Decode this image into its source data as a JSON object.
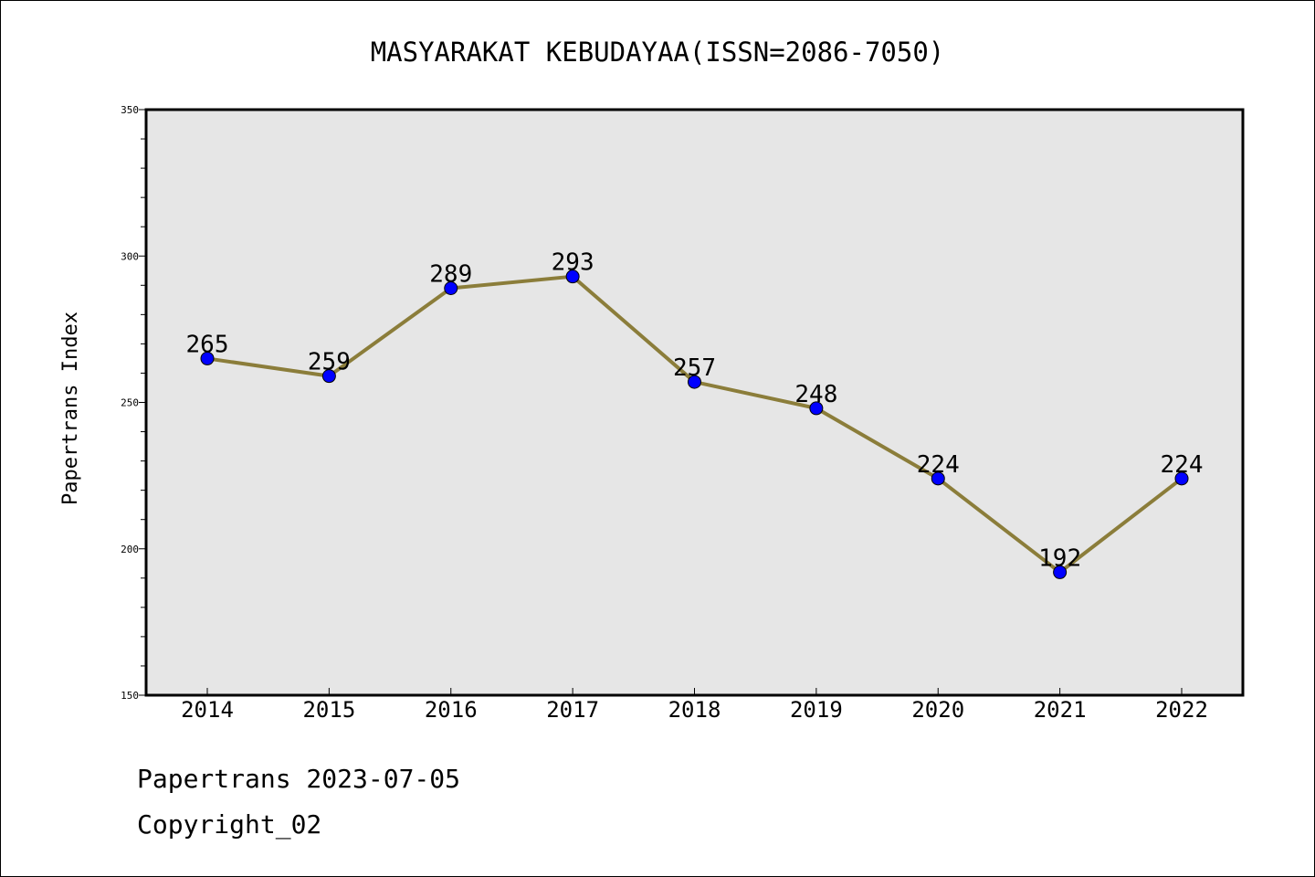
{
  "chart_data": {
    "type": "line",
    "title": "MASYARAKAT KEBUDAYAA(ISSN=2086-7050)",
    "xlabel": "",
    "ylabel": "Papertrans Index",
    "categories": [
      "2014",
      "2015",
      "2016",
      "2017",
      "2018",
      "2019",
      "2020",
      "2021",
      "2022"
    ],
    "values": [
      265,
      259,
      289,
      293,
      257,
      248,
      224,
      192,
      224
    ],
    "data_labels": [
      "265",
      "259",
      "289",
      "293",
      "257",
      "248",
      "224",
      "192",
      "224"
    ],
    "ylim": [
      150,
      350
    ],
    "y_ticks": [
      150,
      200,
      250,
      300,
      350
    ],
    "y_tick_labels": [
      "150",
      "200",
      "250",
      "300",
      "350"
    ],
    "grid": false,
    "colors": {
      "line": "#8B7D3A",
      "marker": "#0000FF",
      "plot_background": "#E6E6E6"
    }
  },
  "footer": {
    "date_text": "Papertrans 2023-07-05",
    "copyright_text": "Copyright_02"
  }
}
